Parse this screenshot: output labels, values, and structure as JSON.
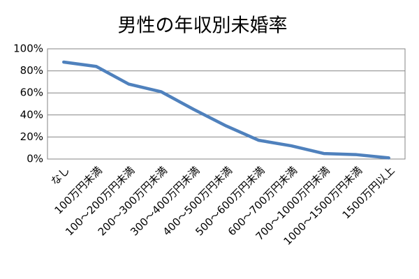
{
  "chart_data": {
    "type": "line",
    "title": "男性の年収別未婚率",
    "categories": [
      "なし",
      "100万円未満",
      "100～200万円未満",
      "200～300万円未満",
      "300～400万円未満",
      "400～500万円未満",
      "500～600万円未満",
      "600～700万円未満",
      "700～1000万円未満",
      "1000～1500万円未満",
      "1500万円以上"
    ],
    "values": [
      88,
      84,
      68,
      61,
      45,
      30,
      17,
      12,
      5,
      4,
      1
    ],
    "color": "#4f81bd",
    "ylim": [
      0,
      100
    ],
    "yticks": [
      {
        "value": 0,
        "label": "0%"
      },
      {
        "value": 20,
        "label": "20%"
      },
      {
        "value": 40,
        "label": "40%"
      },
      {
        "value": 60,
        "label": "60%"
      },
      {
        "value": 80,
        "label": "80%"
      },
      {
        "value": 100,
        "label": "100%"
      }
    ],
    "grid": true
  }
}
